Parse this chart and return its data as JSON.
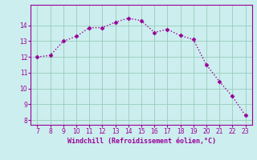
{
  "x": [
    7,
    8,
    9,
    10,
    11,
    12,
    13,
    14,
    15,
    16,
    17,
    18,
    19,
    20,
    21,
    22,
    23
  ],
  "y": [
    12.0,
    12.1,
    13.0,
    13.3,
    13.85,
    13.85,
    14.2,
    14.45,
    14.3,
    13.55,
    13.75,
    13.35,
    13.1,
    11.5,
    10.45,
    9.5,
    8.3
  ],
  "xlim": [
    6.5,
    23.5
  ],
  "ylim": [
    7.7,
    15.3
  ],
  "xticks": [
    7,
    8,
    9,
    10,
    11,
    12,
    13,
    14,
    15,
    16,
    17,
    18,
    19,
    20,
    21,
    22,
    23
  ],
  "yticks": [
    8,
    9,
    10,
    11,
    12,
    13,
    14
  ],
  "xlabel": "Windchill (Refroidissement éolien,°C)",
  "line_color": "#990099",
  "marker": "D",
  "background_color": "#cceeee",
  "grid_color": "#99ccbb",
  "tick_color": "#990099",
  "label_color": "#990099",
  "marker_size": 2.5,
  "line_width": 1.0
}
